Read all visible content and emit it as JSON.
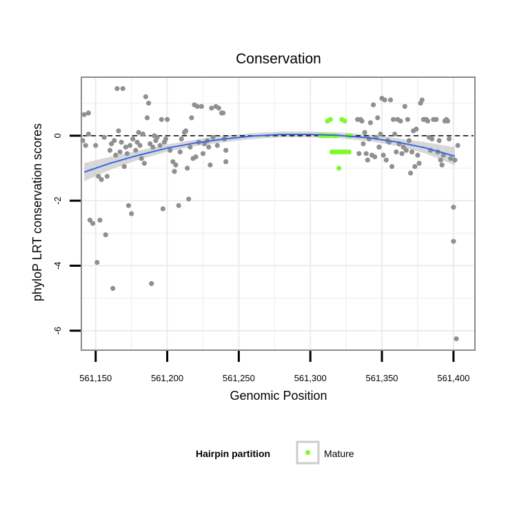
{
  "chart_data": {
    "type": "scatter",
    "title": "Conservation",
    "xlabel": "Genomic Position",
    "ylabel": "phyloP LRT conservation scores",
    "xlim": [
      561140,
      561415
    ],
    "ylim": [
      -6.6,
      1.8
    ],
    "x_ticks": [
      561150,
      561200,
      561250,
      561300,
      561350,
      561400
    ],
    "x_tick_labels": [
      "561,150",
      "561,200",
      "561,250",
      "561,300",
      "561,350",
      "561,400"
    ],
    "y_ticks": [
      0,
      -2,
      -4,
      -6
    ],
    "y_tick_labels": [
      "0",
      "-2",
      "-4",
      "-6"
    ],
    "grid": true,
    "reference_line": {
      "y": 0,
      "style": "dashed"
    },
    "legend": {
      "title": "Hairpin partition",
      "position": "bottom",
      "entries": [
        {
          "label": "Mature",
          "color": "#7ef92d"
        }
      ]
    },
    "colors": {
      "other": "#909090",
      "mature": "#7ef92d",
      "smooth": "#3566e0",
      "band": "#c9c9c9",
      "panel_border": "#8a8a8a",
      "grid": "#ececec"
    },
    "smooth": {
      "x": [
        561142,
        561160,
        561180,
        561200,
        561220,
        561240,
        561260,
        561280,
        561300,
        561320,
        561340,
        561360,
        561380,
        561401
      ],
      "y": [
        -1.12,
        -0.85,
        -0.6,
        -0.38,
        -0.22,
        -0.1,
        -0.01,
        0.04,
        0.04,
        0.01,
        -0.06,
        -0.19,
        -0.37,
        -0.63
      ],
      "ci_half": [
        0.28,
        0.2,
        0.14,
        0.11,
        0.1,
        0.1,
        0.09,
        0.09,
        0.09,
        0.09,
        0.1,
        0.12,
        0.17,
        0.28
      ]
    },
    "series": [
      {
        "name": "Other",
        "points": [
          [
            561141,
            -0.15
          ],
          [
            561142,
            0.65
          ],
          [
            561143,
            -0.3
          ],
          [
            561145,
            0.7
          ],
          [
            561145,
            0.05
          ],
          [
            561146,
            -2.6
          ],
          [
            561148,
            -2.7
          ],
          [
            561150,
            -0.3
          ],
          [
            561151,
            -3.9
          ],
          [
            561152,
            -1.25
          ],
          [
            561153,
            -2.6
          ],
          [
            561154,
            -1.35
          ],
          [
            561156,
            -0.05
          ],
          [
            561157,
            -3.05
          ],
          [
            561158,
            -1.25
          ],
          [
            561160,
            -0.45
          ],
          [
            561161,
            -0.25
          ],
          [
            561162,
            -4.7
          ],
          [
            561163,
            -0.15
          ],
          [
            561164,
            -0.6
          ],
          [
            561165,
            1.45
          ],
          [
            561166,
            0.15
          ],
          [
            561167,
            -0.5
          ],
          [
            561168,
            -0.2
          ],
          [
            561169,
            1.45
          ],
          [
            561170,
            -0.95
          ],
          [
            561171,
            -0.35
          ],
          [
            561172,
            -0.55
          ],
          [
            561173,
            -2.15
          ],
          [
            561174,
            -0.3
          ],
          [
            561175,
            -2.4
          ],
          [
            561176,
            -0.1
          ],
          [
            561178,
            -0.45
          ],
          [
            561179,
            -0.2
          ],
          [
            561180,
            0.1
          ],
          [
            561181,
            -0.3
          ],
          [
            561182,
            -0.7
          ],
          [
            561183,
            0.05
          ],
          [
            561184,
            -0.85
          ],
          [
            561185,
            1.2
          ],
          [
            561186,
            0.55
          ],
          [
            561187,
            1.0
          ],
          [
            561188,
            -0.25
          ],
          [
            561189,
            -4.55
          ],
          [
            561190,
            -0.35
          ],
          [
            561191,
            0.0
          ],
          [
            561192,
            -0.15
          ],
          [
            561193,
            -0.05
          ],
          [
            561195,
            -0.3
          ],
          [
            561196,
            0.5
          ],
          [
            561197,
            -2.25
          ],
          [
            561198,
            -0.2
          ],
          [
            561199,
            -0.1
          ],
          [
            561200,
            0.5
          ],
          [
            561202,
            -0.45
          ],
          [
            561204,
            -0.8
          ],
          [
            561205,
            -1.1
          ],
          [
            561206,
            -0.9
          ],
          [
            561208,
            -2.15
          ],
          [
            561209,
            -0.5
          ],
          [
            561210,
            -0.1
          ],
          [
            561212,
            0.1
          ],
          [
            561213,
            0.15
          ],
          [
            561214,
            -1.0
          ],
          [
            561215,
            -1.95
          ],
          [
            561216,
            -0.35
          ],
          [
            561217,
            0.55
          ],
          [
            561218,
            -0.7
          ],
          [
            561219,
            0.95
          ],
          [
            561220,
            -0.65
          ],
          [
            561221,
            0.9
          ],
          [
            561222,
            -0.2
          ],
          [
            561224,
            0.9
          ],
          [
            561225,
            -0.55
          ],
          [
            561226,
            -0.25
          ],
          [
            561228,
            -0.15
          ],
          [
            561229,
            -0.35
          ],
          [
            561230,
            -0.9
          ],
          [
            561231,
            0.85
          ],
          [
            561232,
            -0.05
          ],
          [
            561234,
            0.9
          ],
          [
            561235,
            -0.3
          ],
          [
            561236,
            0.85
          ],
          [
            561238,
            0.7
          ],
          [
            561239,
            0.7
          ],
          [
            561240,
            -0.1
          ],
          [
            561241,
            -0.45
          ],
          [
            561241,
            -0.8
          ],
          [
            561333,
            0.5
          ],
          [
            561334,
            -0.55
          ],
          [
            561335,
            0.5
          ],
          [
            561336,
            0.45
          ],
          [
            561337,
            -0.25
          ],
          [
            561338,
            0.1
          ],
          [
            561339,
            -0.55
          ],
          [
            561340,
            -0.75
          ],
          [
            561341,
            -0.1
          ],
          [
            561342,
            0.4
          ],
          [
            561343,
            -0.6
          ],
          [
            561344,
            0.95
          ],
          [
            561345,
            -0.65
          ],
          [
            561346,
            -0.05
          ],
          [
            561347,
            0.55
          ],
          [
            561348,
            -0.35
          ],
          [
            561349,
            0.05
          ],
          [
            561350,
            1.15
          ],
          [
            561351,
            -0.6
          ],
          [
            561352,
            1.1
          ],
          [
            561353,
            -0.75
          ],
          [
            561354,
            -0.15
          ],
          [
            561355,
            -0.2
          ],
          [
            561356,
            1.1
          ],
          [
            561357,
            -0.95
          ],
          [
            561358,
            0.5
          ],
          [
            561359,
            0.05
          ],
          [
            561360,
            -0.5
          ],
          [
            561361,
            0.5
          ],
          [
            561362,
            -0.25
          ],
          [
            561363,
            0.45
          ],
          [
            561364,
            -0.55
          ],
          [
            561365,
            -0.35
          ],
          [
            561366,
            0.9
          ],
          [
            561367,
            -0.45
          ],
          [
            561368,
            0.5
          ],
          [
            561369,
            -0.15
          ],
          [
            561370,
            -1.15
          ],
          [
            561371,
            -0.5
          ],
          [
            561372,
            0.15
          ],
          [
            561373,
            -0.95
          ],
          [
            561374,
            0.2
          ],
          [
            561375,
            -0.6
          ],
          [
            561376,
            -0.85
          ],
          [
            561377,
            1.0
          ],
          [
            561378,
            1.1
          ],
          [
            561379,
            0.5
          ],
          [
            561380,
            0.5
          ],
          [
            561381,
            0.5
          ],
          [
            561382,
            0.45
          ],
          [
            561383,
            -0.05
          ],
          [
            561384,
            -0.45
          ],
          [
            561385,
            -0.1
          ],
          [
            561386,
            0.5
          ],
          [
            561387,
            0.5
          ],
          [
            561388,
            0.5
          ],
          [
            561389,
            -0.5
          ],
          [
            561390,
            -0.15
          ],
          [
            561391,
            -0.75
          ],
          [
            561392,
            -0.9
          ],
          [
            561393,
            -0.6
          ],
          [
            561394,
            0.45
          ],
          [
            561395,
            0.5
          ],
          [
            561396,
            0.45
          ],
          [
            561397,
            -0.1
          ],
          [
            561398,
            -0.7
          ],
          [
            561400,
            -2.2
          ],
          [
            561400,
            -3.25
          ],
          [
            561401,
            -0.75
          ],
          [
            561402,
            -6.25
          ],
          [
            561403,
            -0.3
          ]
        ]
      },
      {
        "name": "Mature",
        "points": [
          [
            561307,
            0.0
          ],
          [
            561309,
            0.0
          ],
          [
            561311,
            0.0
          ],
          [
            561312,
            0.45
          ],
          [
            561313,
            0.0
          ],
          [
            561314,
            0.5
          ],
          [
            561315,
            -0.5
          ],
          [
            561316,
            0.0
          ],
          [
            561317,
            -0.5
          ],
          [
            561318,
            0.0
          ],
          [
            561319,
            -0.5
          ],
          [
            561320,
            -1.0
          ],
          [
            561321,
            -0.5
          ],
          [
            561322,
            0.5
          ],
          [
            561323,
            -0.5
          ],
          [
            561324,
            0.45
          ],
          [
            561325,
            -0.5
          ],
          [
            561326,
            0.0
          ],
          [
            561327,
            -0.5
          ],
          [
            561328,
            0.0
          ]
        ]
      }
    ]
  }
}
